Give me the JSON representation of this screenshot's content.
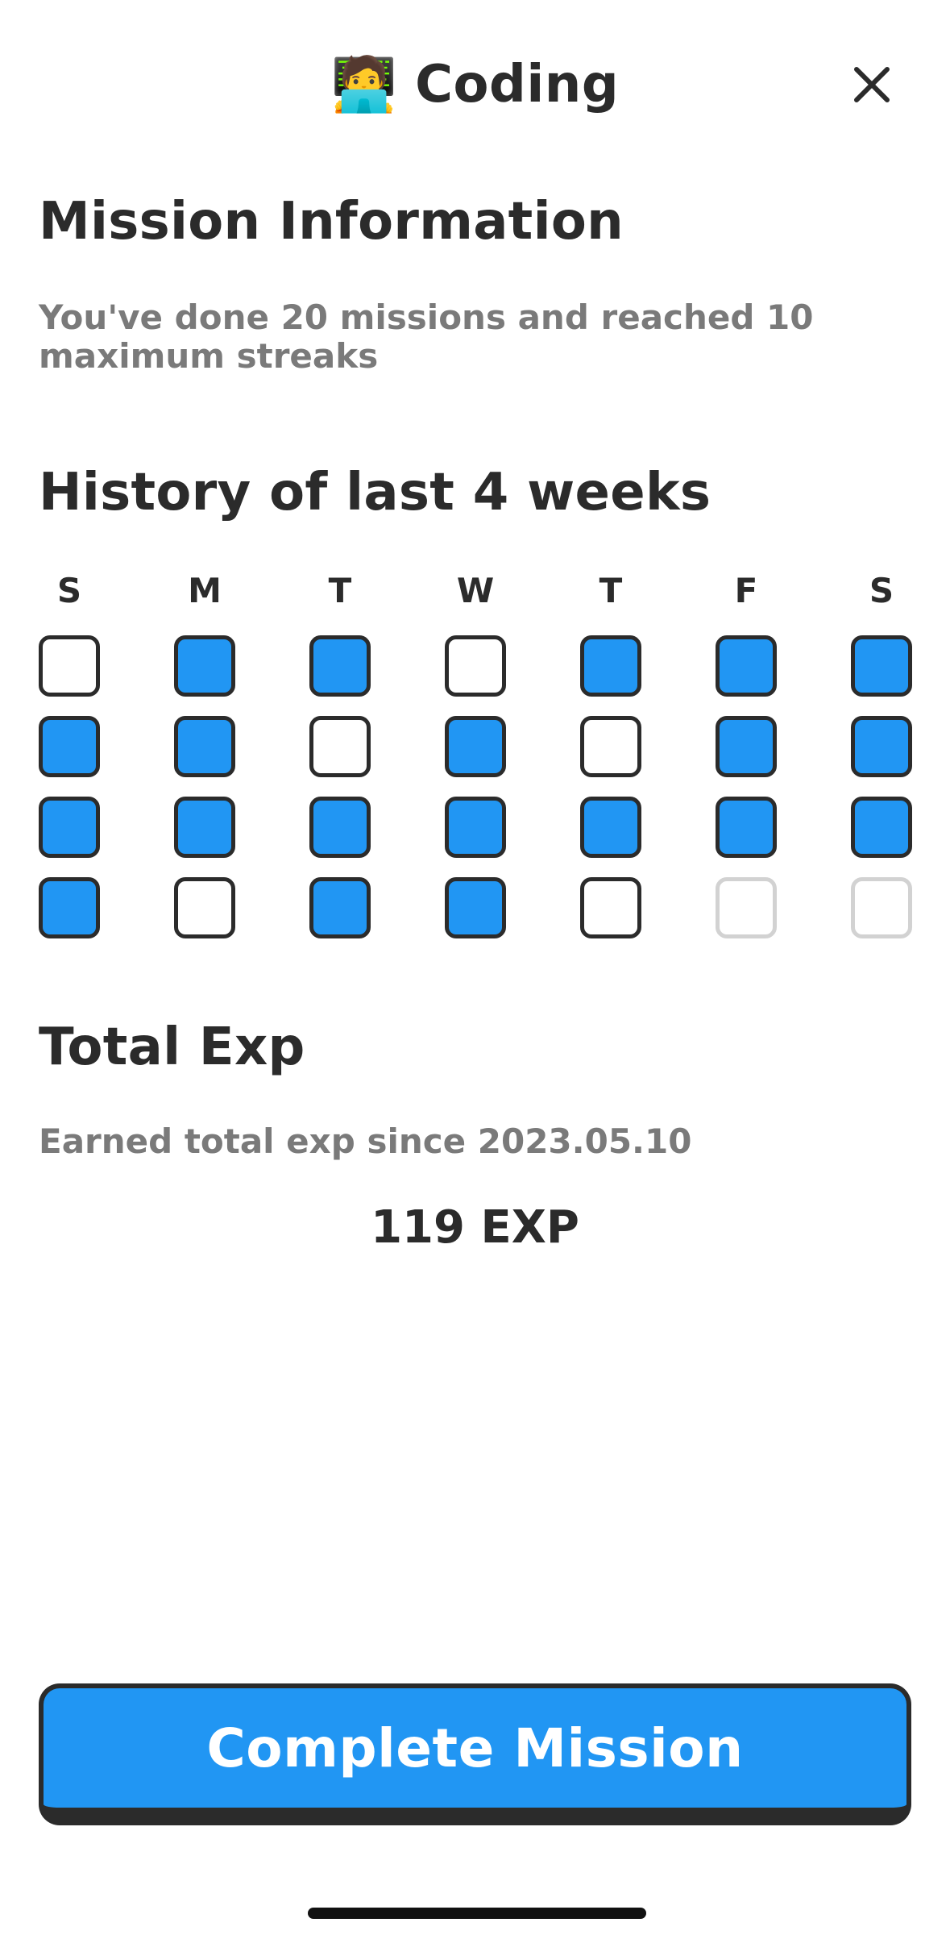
{
  "header": {
    "emoji": "🧑‍💻",
    "title": "Coding",
    "close_icon": "close-icon"
  },
  "mission_info": {
    "title": "Mission Information",
    "description": "You've done 20 missions and reached 10 maximum streaks"
  },
  "history": {
    "title": "History of last 4 weeks",
    "day_labels": [
      "S",
      "M",
      "T",
      "W",
      "T",
      "F",
      "S"
    ],
    "weeks": [
      [
        "empty",
        "done",
        "done",
        "empty",
        "done",
        "done",
        "done"
      ],
      [
        "done",
        "done",
        "empty",
        "done",
        "empty",
        "done",
        "done"
      ],
      [
        "done",
        "done",
        "done",
        "done",
        "done",
        "done",
        "done"
      ],
      [
        "done",
        "empty",
        "done",
        "done",
        "empty",
        "future",
        "future"
      ]
    ],
    "colors": {
      "done": "#2196f3",
      "border": "#2b2b2b",
      "future_border": "#d2d2d2"
    }
  },
  "total_exp": {
    "title": "Total Exp",
    "description": "Earned total exp since 2023.05.10",
    "value": "119 EXP"
  },
  "actions": {
    "complete_label": "Complete Mission",
    "accent": "#2196f3"
  }
}
